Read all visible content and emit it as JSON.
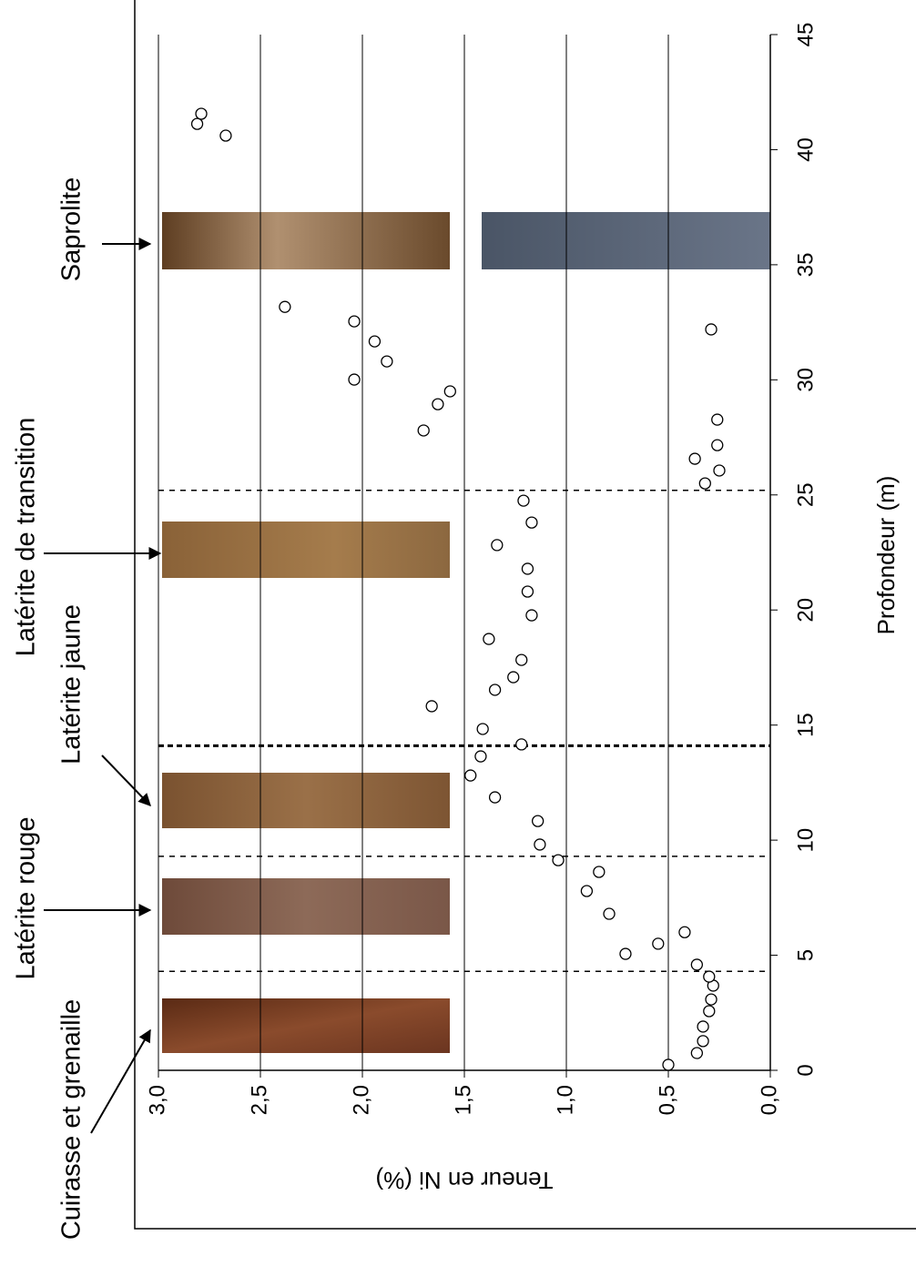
{
  "chart_data": {
    "type": "scatter",
    "xlabel": "Profondeur (m)",
    "ylabel": "Teneur en Ni (%)",
    "xlim": [
      0,
      45
    ],
    "xticks": [
      0,
      5,
      10,
      15,
      20,
      25,
      30,
      35,
      40,
      45
    ],
    "ylim": [
      0,
      3
    ],
    "yticks": [
      {
        "value": 0,
        "label": "0,0"
      },
      {
        "value": 0.5,
        "label": "0,5"
      },
      {
        "value": 1,
        "label": "1,0"
      },
      {
        "value": 1.5,
        "label": "1,5"
      },
      {
        "value": 2,
        "label": "2,0"
      },
      {
        "value": 2.5,
        "label": "2,5"
      },
      {
        "value": 3,
        "label": "3,0"
      }
    ],
    "grid": true,
    "x": [
      0.24,
      0.75,
      1.27,
      1.9,
      2.57,
      3.08,
      3.68,
      4.07,
      4.59,
      6.0,
      5.5,
      5.06,
      6.8,
      7.79,
      8.62,
      9.13,
      9.81,
      10.83,
      11.86,
      12.81,
      13.64,
      14.16,
      14.83,
      15.82,
      16.53,
      17.08,
      17.83,
      18.74,
      19.77,
      20.8,
      21.79,
      22.82,
      23.8,
      24.75,
      25.5,
      26.06,
      26.57,
      27.16,
      28.27,
      27.8,
      28.94,
      29.5,
      30.01,
      30.8,
      31.67,
      32.19,
      32.54,
      33.17,
      40.61,
      41.12,
      41.56
    ],
    "values": [
      0.5,
      0.36,
      0.33,
      0.33,
      0.3,
      0.29,
      0.28,
      0.3,
      0.36,
      0.42,
      0.55,
      0.71,
      0.79,
      0.9,
      0.84,
      1.04,
      1.13,
      1.14,
      1.35,
      1.47,
      1.42,
      1.22,
      1.41,
      1.66,
      1.35,
      1.26,
      1.22,
      1.38,
      1.17,
      1.19,
      1.19,
      1.34,
      1.17,
      1.21,
      0.32,
      0.25,
      0.37,
      0.26,
      0.26,
      1.7,
      1.63,
      1.57,
      2.04,
      1.88,
      1.94,
      0.29,
      2.04,
      2.38,
      2.67,
      2.81,
      2.79
    ],
    "boundaries": [
      4.3,
      9.3,
      14.1,
      25.2
    ],
    "annotations": [
      "Cuirasse et grenaille",
      "Latérite rouge",
      "Latérite jaune",
      "Latérite de transition",
      "Saprolite"
    ]
  }
}
